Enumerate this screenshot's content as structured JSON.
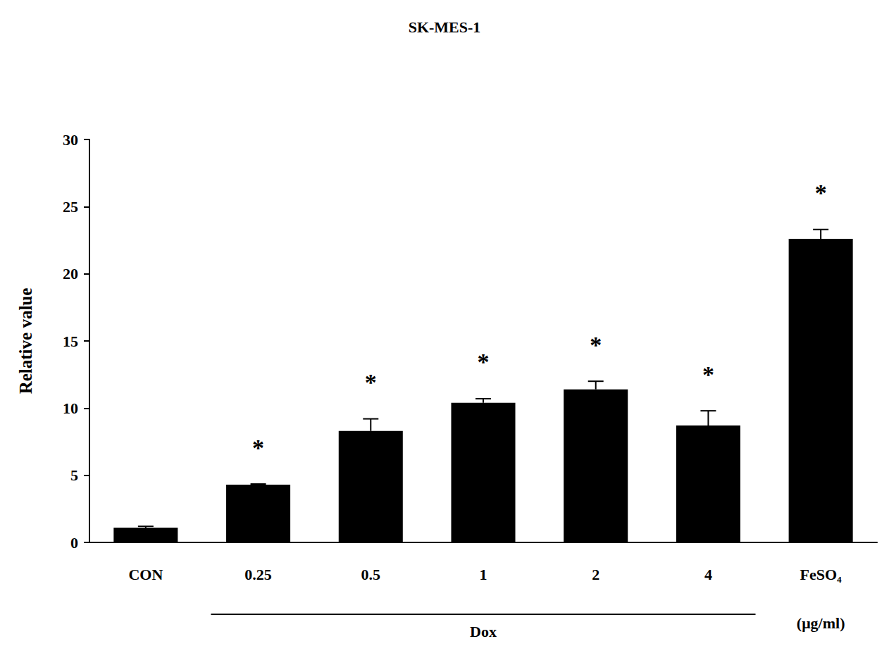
{
  "chart_data": {
    "type": "bar",
    "title": "SK-MES-1",
    "y_label": "Relative value",
    "categories": [
      "CON",
      "0.25",
      "0.5",
      "1",
      "2",
      "4",
      "FeSO₄"
    ],
    "values": [
      1.1,
      4.3,
      8.3,
      10.4,
      11.4,
      8.7,
      22.6
    ],
    "errors": [
      0.1,
      0.05,
      0.9,
      0.3,
      0.6,
      1.1,
      0.7
    ],
    "significance": [
      null,
      "*",
      "*",
      "*",
      "*",
      "*",
      "*"
    ],
    "color": "#000000",
    "ylim": [
      0,
      30
    ],
    "yticks": [
      0,
      5,
      10,
      15,
      20,
      25,
      30
    ],
    "grid": false,
    "annotations": {
      "group": {
        "label": "Dox",
        "categories": [
          "0.25",
          "0.5",
          "1",
          "2",
          "4"
        ]
      },
      "unit": {
        "label": "(μg/ml)",
        "category": "FeSO₄"
      }
    }
  }
}
